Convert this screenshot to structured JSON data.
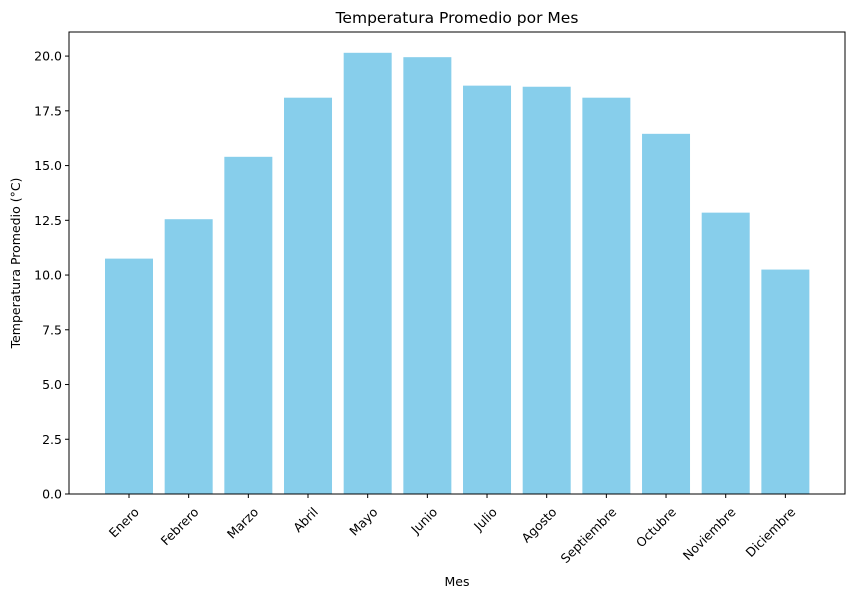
{
  "chart_data": {
    "type": "bar",
    "title": "Temperatura Promedio por Mes",
    "xlabel": "Mes",
    "ylabel": "Temperatura Promedio (°C)",
    "categories": [
      "Enero",
      "Febrero",
      "Marzo",
      "Abril",
      "Mayo",
      "Junio",
      "Julio",
      "Agosto",
      "Septiembre",
      "Octubre",
      "Noviembre",
      "Diciembre"
    ],
    "values": [
      10.75,
      12.55,
      15.4,
      18.1,
      20.15,
      19.95,
      18.65,
      18.6,
      18.1,
      16.45,
      12.85,
      10.25
    ],
    "ylim": [
      0,
      21.1
    ],
    "yticks": [
      "0.0",
      "2.5",
      "5.0",
      "7.5",
      "10.0",
      "12.5",
      "15.0",
      "17.5",
      "20.0"
    ],
    "bar_color": "#87ceeb",
    "grid": false,
    "legend": "none"
  }
}
